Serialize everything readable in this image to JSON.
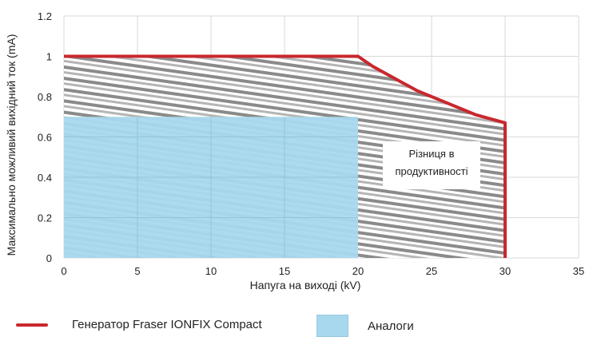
{
  "chart_data": {
    "type": "area",
    "xlabel": "Напуга на виході (kV)",
    "ylabel": "Максимально можливий вихідний ток (mA)",
    "xlim": [
      0,
      35
    ],
    "ylim": [
      0,
      1.2
    ],
    "xticks": [
      0,
      5,
      10,
      15,
      20,
      25,
      30,
      35
    ],
    "yticks": [
      0,
      0.2,
      0.4,
      0.6,
      0.8,
      1,
      1.2
    ],
    "grid": true,
    "legend_position": "bottom",
    "series": [
      {
        "name": "Генератор Fraser IONFIX Compact",
        "type": "line",
        "color": "#c8282e",
        "x": [
          0,
          20,
          21,
          22,
          23,
          24,
          25,
          26,
          27,
          28,
          29,
          30,
          30
        ],
        "y": [
          1,
          1,
          0.95,
          0.91,
          0.87,
          0.83,
          0.8,
          0.77,
          0.74,
          0.71,
          0.69,
          0.67,
          0
        ]
      },
      {
        "name": "Аналоги",
        "type": "area",
        "color": "#a8d8ee",
        "x": [
          0,
          20
        ],
        "y": [
          0.7,
          0.7
        ]
      }
    ],
    "annotations": [
      {
        "text": [
          "Різниця в",
          "продуктивності"
        ],
        "x": 25,
        "y": 0.42
      }
    ]
  }
}
